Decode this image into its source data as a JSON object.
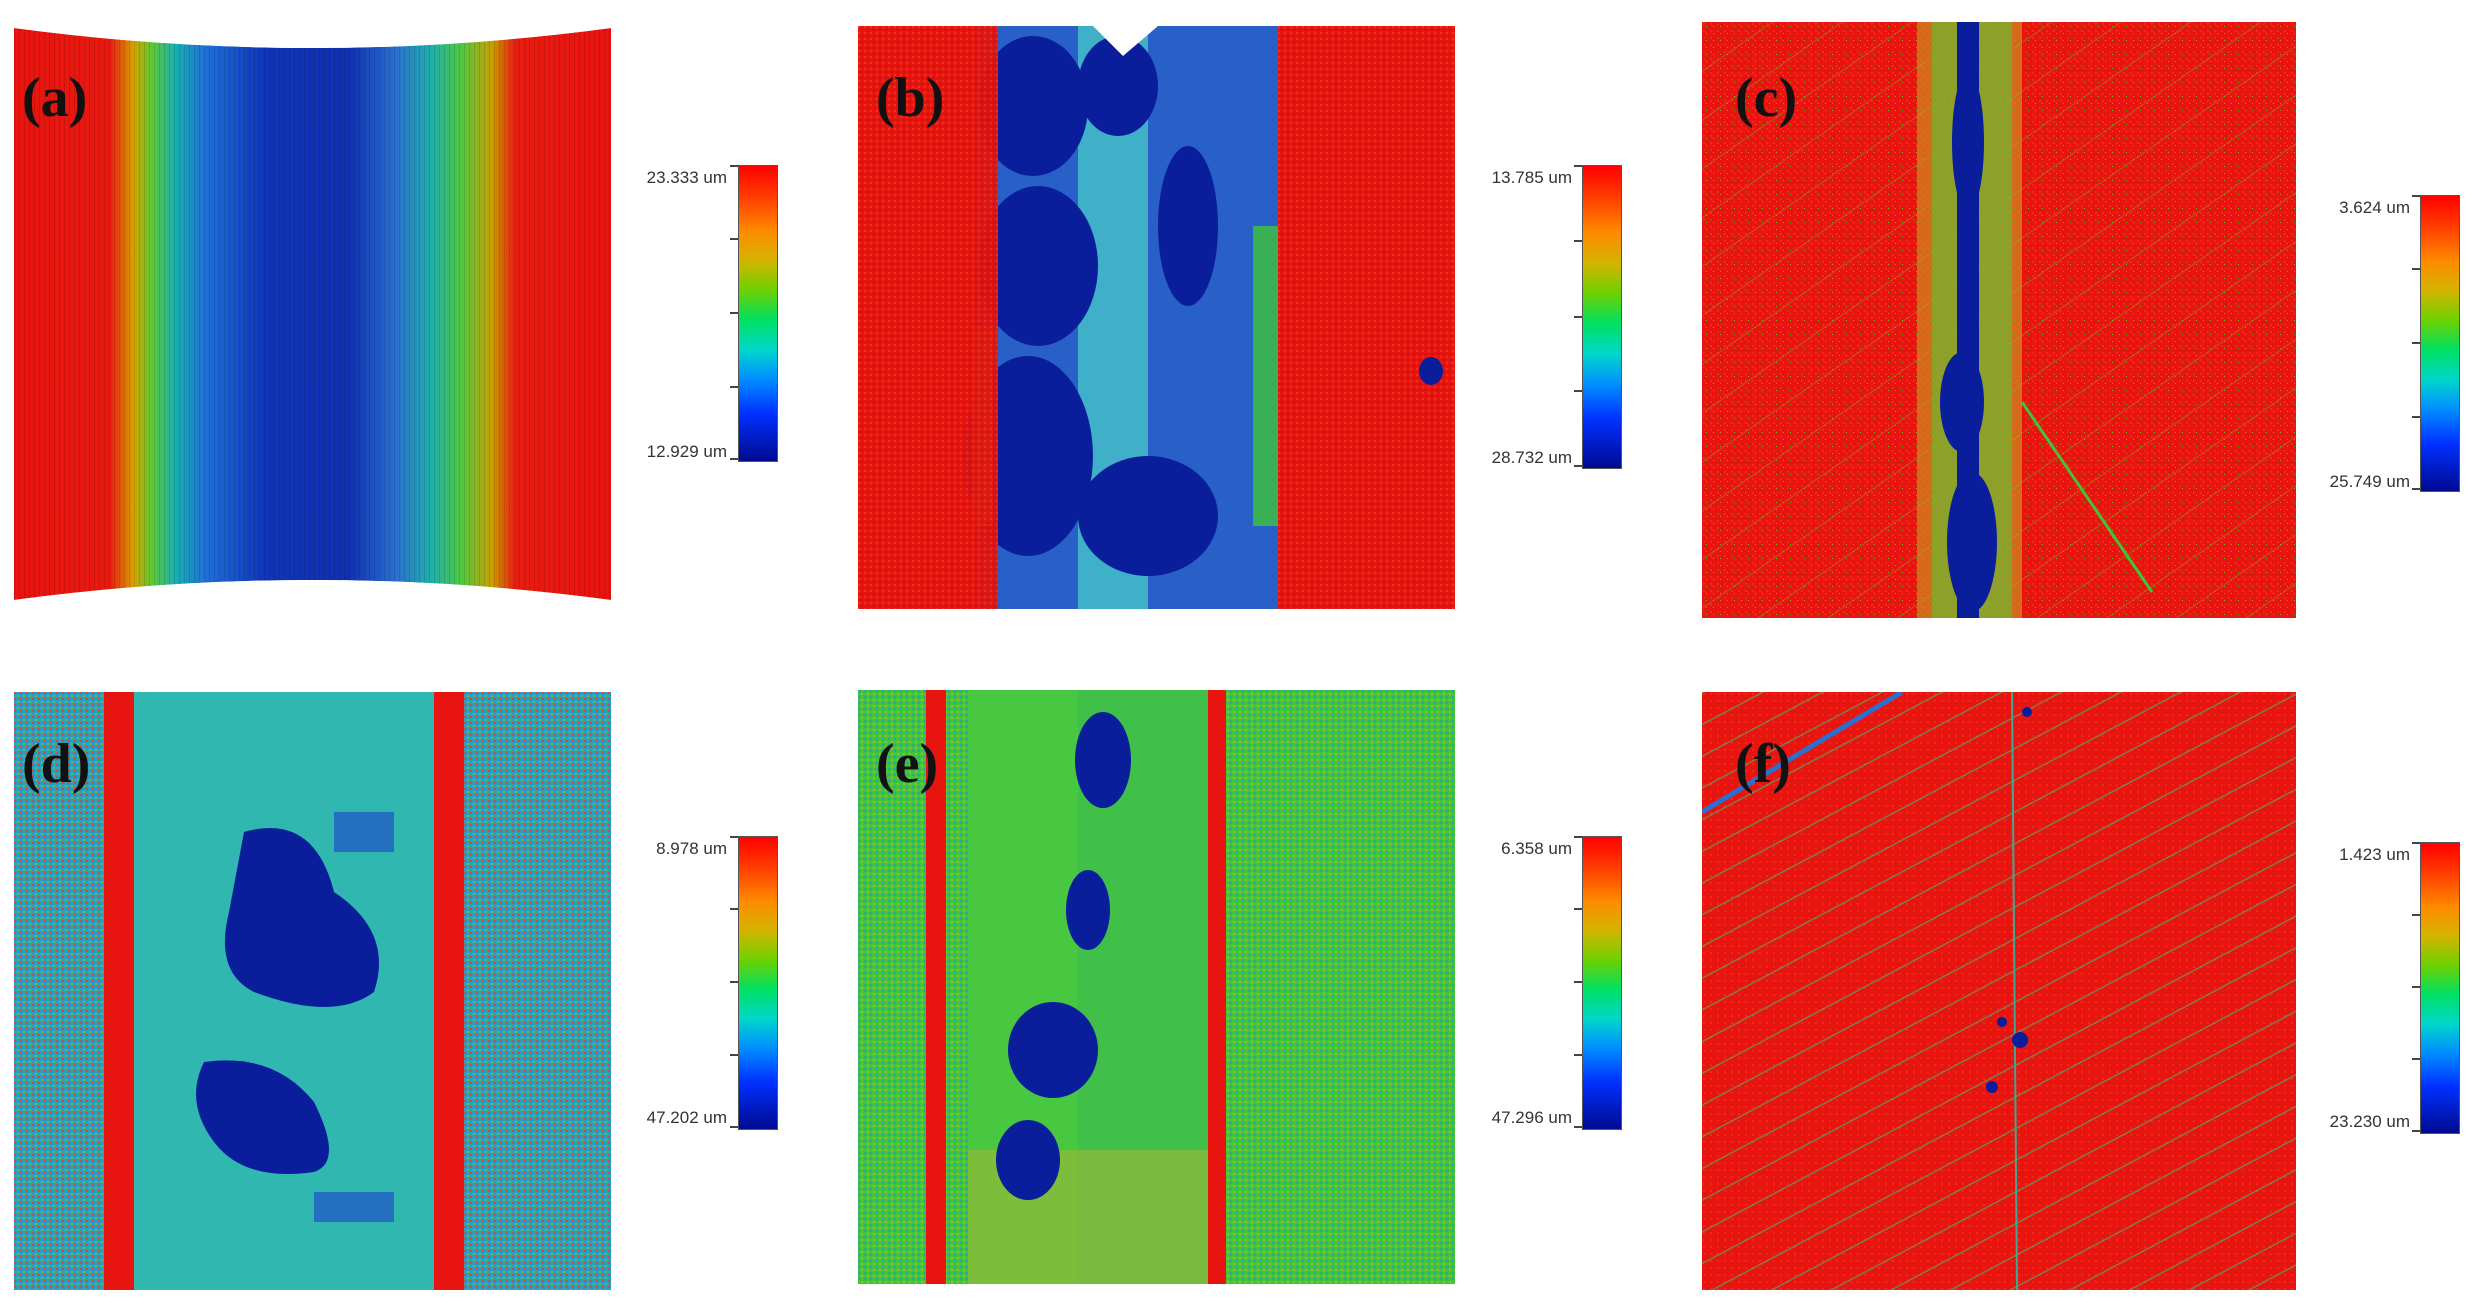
{
  "panels": [
    {
      "label": "(a)",
      "scale_top": "23.333 um",
      "scale_bottom": "12.929 um"
    },
    {
      "label": "(b)",
      "scale_top": "13.785 um",
      "scale_bottom": "28.732 um"
    },
    {
      "label": "(c)",
      "scale_top": "3.624 um",
      "scale_bottom": "25.749 um"
    },
    {
      "label": "(d)",
      "scale_top": "8.978 um",
      "scale_bottom": "47.202 um"
    },
    {
      "label": "(e)",
      "scale_top": "6.358 um",
      "scale_bottom": "47.296 um"
    },
    {
      "label": "(f)",
      "scale_top": "1.423 um",
      "scale_bottom": "23.230 um"
    }
  ],
  "colors": {
    "red": "#e8140f",
    "blue": "#0a1e9c",
    "cyan": "#2fb8b0",
    "green": "#3fc43a",
    "teal": "#22aa9a"
  }
}
